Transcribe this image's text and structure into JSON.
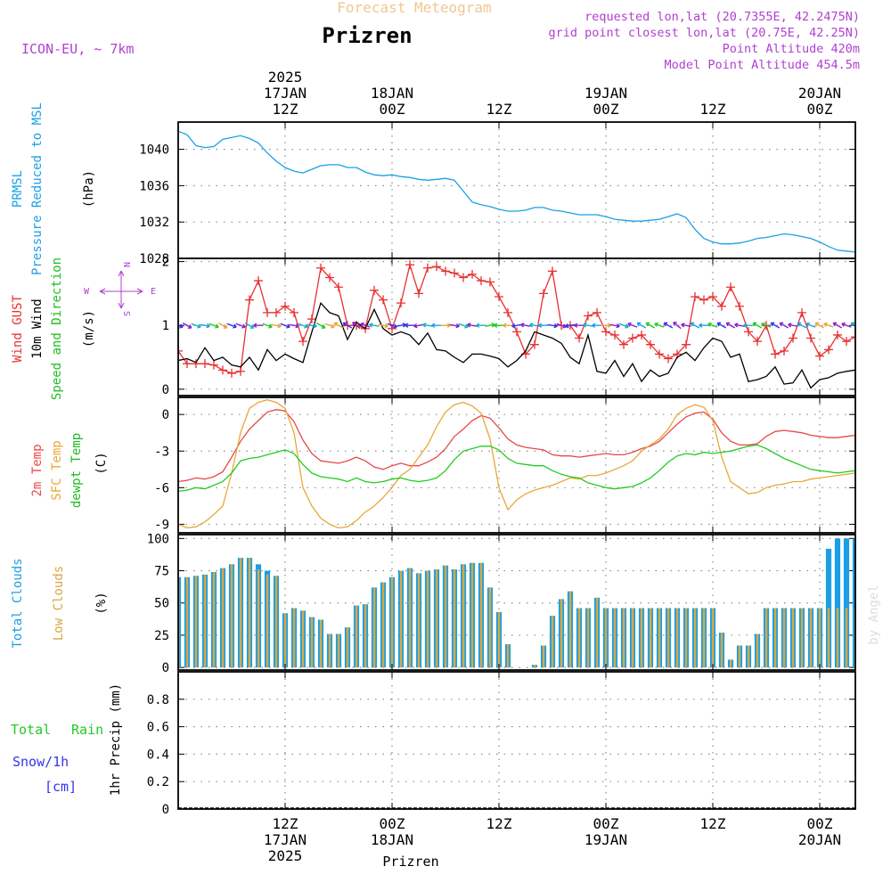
{
  "header": {
    "product_title": "Forecast Meteogram",
    "location": "Prizren",
    "model": "ICON-EU, ~ 7km",
    "requested": "requested lon,lat (20.7355E, 42.2475N)",
    "grid_point": "grid point closest lon,lat (20.75E, 42.25N)",
    "point_altitude": "Point Altitude 420m",
    "model_altitude": "Model Point Altitude 454.5m",
    "footer_location": "Prizren",
    "watermark": "by Angel"
  },
  "time_axis": {
    "top_year": "2025",
    "bottom_year": "2025",
    "ticks": [
      {
        "h": 12,
        "hour": "12Z",
        "date": "17JAN"
      },
      {
        "h": 24,
        "hour": "00Z",
        "date": "18JAN"
      },
      {
        "h": 36,
        "hour": "12Z",
        "date": ""
      },
      {
        "h": 48,
        "hour": "00Z",
        "date": "19JAN"
      },
      {
        "h": 60,
        "hour": "12Z",
        "date": ""
      },
      {
        "h": 72,
        "hour": "00Z",
        "date": "20JAN"
      }
    ]
  },
  "panel_labels": {
    "pressure": [
      "PRMSL",
      "Pressure Reduced to MSL",
      "(hPa)"
    ],
    "wind": [
      "Wind GUST",
      "10m Wind",
      "Speed and Direction",
      "(m/s)"
    ],
    "compass": {
      "n": "N",
      "s": "S",
      "w": "W",
      "e": "E"
    },
    "temp": [
      "2m Temp",
      "SFC Temp",
      "dewpt Temp",
      "(C)"
    ],
    "cloud": [
      "Total Clouds",
      "Low Clouds",
      "(%)"
    ],
    "precip": {
      "total": "Total",
      "rain": "Rain",
      "snow": "Snow/1h",
      "cm": "[cm]",
      "axis": "1hr Precip (mm)"
    }
  },
  "chart_data": [
    {
      "type": "line",
      "title": "PRMSL Pressure Reduced to MSL",
      "ylabel": "(hPa)",
      "ylim": [
        1028,
        1043
      ],
      "yticks": [
        "1028",
        "1032",
        "1036",
        "1040"
      ],
      "color": "#1aa0e6",
      "series": [
        {
          "name": "PRMSL",
          "x": [
            0,
            1,
            2,
            3,
            4,
            5,
            6,
            7,
            8,
            9,
            10,
            11,
            12,
            13,
            14,
            15,
            16,
            17,
            18,
            19,
            20,
            21,
            22,
            23,
            24,
            25,
            26,
            27,
            28,
            29,
            30,
            31,
            32,
            33,
            34,
            35,
            36,
            37,
            38,
            39,
            40,
            41,
            42,
            43,
            44,
            45,
            46,
            47,
            48,
            49,
            50,
            51,
            52,
            53,
            54,
            55,
            56,
            57,
            58,
            59,
            60,
            61,
            62,
            63,
            64,
            65,
            66,
            67,
            68,
            69,
            70,
            71,
            72,
            73,
            74,
            75,
            76
          ],
          "values": [
            1042,
            1041.6,
            1040.4,
            1040.2,
            1040.3,
            1041.1,
            1041.3,
            1041.5,
            1041.2,
            1040.7,
            1039.6,
            1038.7,
            1038,
            1037.6,
            1037.4,
            1037.8,
            1038.2,
            1038.3,
            1038.3,
            1038,
            1038,
            1037.5,
            1037.2,
            1037.1,
            1037.2,
            1037,
            1036.9,
            1036.7,
            1036.6,
            1036.7,
            1036.8,
            1036.6,
            1035.4,
            1034.2,
            1033.9,
            1033.7,
            1033.4,
            1033.2,
            1033.2,
            1033.3,
            1033.6,
            1033.6,
            1033.3,
            1033.2,
            1033,
            1032.8,
            1032.8,
            1032.8,
            1032.6,
            1032.3,
            1032.2,
            1032.1,
            1032.1,
            1032.2,
            1032.3,
            1032.6,
            1032.9,
            1032.5,
            1031.2,
            1030.2,
            1029.8,
            1029.6,
            1029.6,
            1029.7,
            1029.9,
            1030.2,
            1030.3,
            1030.5,
            1030.7,
            1030.6,
            1030.4,
            1030.2,
            1029.8,
            1029.3,
            1028.9,
            1028.8,
            1028.7
          ]
        }
      ]
    },
    {
      "type": "line",
      "title": "Wind GUST / 10m Wind Speed and Direction",
      "ylabel": "(m/s)",
      "ylim": [
        -0.1,
        2.05
      ],
      "yticks": [
        "0",
        "1",
        "2"
      ],
      "series": [
        {
          "name": "Wind GUST",
          "color": "#e83030",
          "marker": "+",
          "values": [
            0.6,
            0.4,
            0.4,
            0.4,
            0.38,
            0.3,
            0.25,
            0.28,
            1.4,
            1.7,
            1.2,
            1.2,
            1.3,
            1.2,
            0.75,
            1.1,
            1.9,
            1.75,
            1.6,
            1,
            1,
            0.95,
            1.55,
            1.4,
            0.95,
            1.35,
            1.95,
            1.5,
            1.9,
            1.92,
            1.85,
            1.82,
            1.75,
            1.8,
            1.7,
            1.68,
            1.45,
            1.2,
            0.9,
            0.55,
            0.7,
            1.5,
            1.85,
            1,
            1,
            0.8,
            1.15,
            1.2,
            0.9,
            0.85,
            0.7,
            0.8,
            0.85,
            0.7,
            0.55,
            0.48,
            0.55,
            0.7,
            1.45,
            1.4,
            1.45,
            1.3,
            1.6,
            1.3,
            0.9,
            0.75,
            1,
            0.55,
            0.6,
            0.8,
            1.2,
            0.8,
            0.52,
            0.62,
            0.85,
            0.75,
            0.82
          ]
        },
        {
          "name": "10m Wind",
          "color": "#000000",
          "values": [
            0.45,
            0.48,
            0.42,
            0.65,
            0.45,
            0.5,
            0.38,
            0.35,
            0.5,
            0.3,
            0.62,
            0.45,
            0.55,
            0.48,
            0.42,
            0.9,
            1.35,
            1.2,
            1.15,
            0.78,
            1.05,
            0.95,
            1.25,
            0.95,
            0.85,
            0.9,
            0.85,
            0.7,
            0.88,
            0.62,
            0.6,
            0.5,
            0.42,
            0.55,
            0.55,
            0.52,
            0.48,
            0.35,
            0.45,
            0.6,
            0.9,
            0.85,
            0.8,
            0.72,
            0.5,
            0.4,
            0.85,
            0.28,
            0.25,
            0.45,
            0.2,
            0.4,
            0.12,
            0.3,
            0.2,
            0.25,
            0.5,
            0.58,
            0.45,
            0.65,
            0.8,
            0.75,
            0.5,
            0.55,
            0.12,
            0.15,
            0.2,
            0.35,
            0.08,
            0.1,
            0.3,
            0.02,
            0.15,
            0.18,
            0.25,
            0.28,
            0.3
          ]
        }
      ]
    },
    {
      "type": "line",
      "title": "2m Temp / SFC Temp / dewpt Temp",
      "ylabel": "(C)",
      "ylim": [
        -9.7,
        1.4
      ],
      "yticks": [
        "-9",
        "-6",
        "-3",
        "0"
      ],
      "series": [
        {
          "name": "2m Temp",
          "color": "#e84848",
          "values": [
            -5.5,
            -5.4,
            -5.2,
            -5.3,
            -5.1,
            -4.7,
            -3.5,
            -2.2,
            -1.2,
            -0.5,
            0.2,
            0.4,
            0.3,
            -0.6,
            -2.1,
            -3.2,
            -3.8,
            -3.9,
            -4,
            -3.8,
            -3.5,
            -3.8,
            -4.3,
            -4.5,
            -4.2,
            -4,
            -4.2,
            -4.2,
            -3.9,
            -3.5,
            -2.8,
            -1.8,
            -1.2,
            -0.5,
            -0.1,
            -0.3,
            -1.1,
            -2,
            -2.5,
            -2.7,
            -2.8,
            -2.9,
            -3.3,
            -3.4,
            -3.4,
            -3.5,
            -3.4,
            -3.3,
            -3.2,
            -3.3,
            -3.3,
            -3.1,
            -2.8,
            -2.6,
            -2.2,
            -1.5,
            -0.8,
            -0.2,
            0.1,
            0.2,
            -0.4,
            -1.5,
            -2.2,
            -2.5,
            -2.5,
            -2.4,
            -1.8,
            -1.4,
            -1.3,
            -1.4,
            -1.5,
            -1.7,
            -1.8,
            -1.9,
            -1.9,
            -1.8,
            -1.7
          ]
        },
        {
          "name": "SFC Temp",
          "color": "#e8a838",
          "values": [
            -9,
            -9.3,
            -9.2,
            -8.8,
            -8.2,
            -7.5,
            -4.8,
            -1.5,
            0.5,
            1,
            1.2,
            1,
            0.5,
            -1.5,
            -6,
            -7.5,
            -8.5,
            -9,
            -9.3,
            -9.2,
            -8.7,
            -8,
            -7.5,
            -6.8,
            -6,
            -5,
            -4.5,
            -3.5,
            -2.5,
            -1,
            0.2,
            0.8,
            1,
            0.7,
            0.1,
            -2,
            -6,
            -7.8,
            -7,
            -6.5,
            -6.2,
            -6,
            -5.8,
            -5.5,
            -5.2,
            -5.3,
            -5,
            -5,
            -4.8,
            -4.5,
            -4.2,
            -3.8,
            -3,
            -2.5,
            -2,
            -1.2,
            0,
            0.5,
            0.8,
            0.6,
            -0.5,
            -3.5,
            -5.5,
            -6,
            -6.5,
            -6.4,
            -6,
            -5.8,
            -5.7,
            -5.5,
            -5.5,
            -5.3,
            -5.2,
            -5.1,
            -5,
            -4.9,
            -4.8
          ]
        },
        {
          "name": "dewpt Temp",
          "color": "#22cc22",
          "values": [
            -6.3,
            -6.2,
            -6,
            -6.1,
            -5.8,
            -5.5,
            -4.8,
            -3.8,
            -3.6,
            -3.5,
            -3.3,
            -3.1,
            -2.9,
            -3.2,
            -4.1,
            -4.8,
            -5.1,
            -5.2,
            -5.3,
            -5.5,
            -5.2,
            -5.5,
            -5.6,
            -5.5,
            -5.3,
            -5.2,
            -5.4,
            -5.5,
            -5.4,
            -5.2,
            -4.6,
            -3.7,
            -3,
            -2.8,
            -2.6,
            -2.6,
            -2.9,
            -3.6,
            -4,
            -4.1,
            -4.2,
            -4.2,
            -4.6,
            -4.9,
            -5.1,
            -5.2,
            -5.6,
            -5.8,
            -6,
            -6.1,
            -6,
            -5.9,
            -5.6,
            -5.2,
            -4.6,
            -3.9,
            -3.4,
            -3.2,
            -3.3,
            -3.1,
            -3.2,
            -3.1,
            -3,
            -2.8,
            -2.6,
            -2.5,
            -2.8,
            -3.2,
            -3.6,
            -3.9,
            -4.2,
            -4.5,
            -4.6,
            -4.7,
            -4.8,
            -4.7,
            -4.6
          ]
        }
      ]
    },
    {
      "type": "bar",
      "title": "Total Clouds / Low Clouds",
      "ylabel": "(%)",
      "ylim": [
        -2,
        103
      ],
      "yticks": [
        "0",
        "25",
        "50",
        "75",
        "100"
      ],
      "series": [
        {
          "name": "Total Clouds",
          "color": "#1a9ee6",
          "values": [
            70,
            70,
            71,
            72,
            74,
            77,
            80,
            85,
            85,
            80,
            75,
            71,
            42,
            46,
            44,
            39,
            37,
            26,
            26,
            31,
            48,
            49,
            62,
            66,
            70,
            75,
            77,
            73,
            75,
            76,
            79,
            76,
            80,
            81,
            81,
            62,
            43,
            18,
            0,
            0,
            2,
            17,
            40,
            53,
            59,
            46,
            46,
            54,
            46,
            46,
            46,
            46,
            46,
            46,
            46,
            46,
            46,
            46,
            46,
            46,
            46,
            27,
            6,
            17,
            17,
            26,
            46,
            46,
            46,
            46,
            46,
            46,
            46,
            92,
            100,
            100,
            100
          ]
        },
        {
          "name": "Low Clouds",
          "color": "#d8a840",
          "values": [
            70,
            70,
            71,
            72,
            74,
            77,
            80,
            85,
            85,
            76,
            72,
            71,
            42,
            46,
            44,
            39,
            37,
            26,
            26,
            31,
            48,
            49,
            62,
            66,
            70,
            75,
            77,
            73,
            75,
            76,
            79,
            76,
            80,
            81,
            81,
            62,
            43,
            18,
            0,
            0,
            2,
            17,
            40,
            53,
            59,
            46,
            46,
            54,
            46,
            46,
            46,
            46,
            46,
            46,
            46,
            46,
            46,
            46,
            46,
            46,
            46,
            27,
            6,
            17,
            17,
            26,
            46,
            46,
            46,
            46,
            46,
            46,
            46,
            46,
            46,
            46,
            46
          ]
        }
      ]
    },
    {
      "type": "bar",
      "title": "Total Rain / Snow/1h",
      "ylabel": "1hr Precip (mm)",
      "ylim": [
        0,
        1
      ],
      "yticks": [
        "0",
        "0.2",
        "0.4",
        "0.6",
        "0.8"
      ],
      "series": [
        {
          "name": "Total Rain",
          "color": "#22cc22",
          "values": []
        }
      ]
    }
  ],
  "wind_dirs": [
    110,
    120,
    110,
    100,
    110,
    120,
    110,
    110,
    120,
    270,
    110,
    100,
    110,
    100,
    110,
    100,
    120,
    110,
    300,
    300,
    310,
    290,
    280,
    100,
    110,
    80,
    270,
    260,
    280,
    270,
    90,
    100,
    110,
    280,
    270,
    80,
    270,
    270,
    260,
    280,
    280,
    270,
    100,
    110,
    260,
    270,
    280,
    270,
    90,
    100,
    110,
    290,
    300,
    300,
    290,
    300,
    310,
    280,
    300,
    270,
    290,
    300,
    300,
    280,
    270,
    300,
    290,
    300,
    300,
    280,
    300,
    290,
    300,
    290,
    300,
    290,
    300
  ],
  "colors": {
    "frame": "#000000",
    "grid": "#8a8a8a",
    "title_orange": "#f0c890",
    "magenta": "#b040d0",
    "precip_blue": "#3333ee"
  }
}
